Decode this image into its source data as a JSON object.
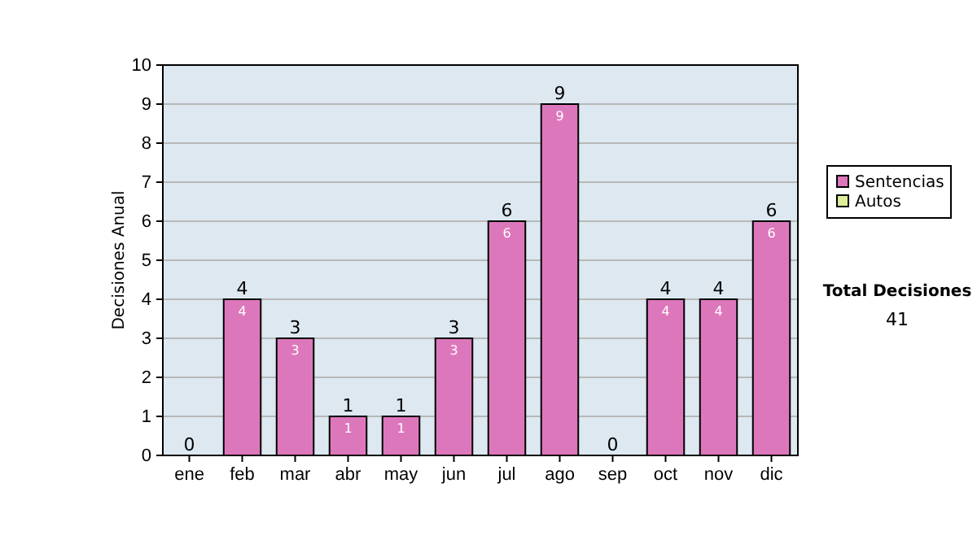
{
  "chart_data": {
    "type": "bar",
    "ylabel": "Decisiones Anual",
    "categories": [
      "ene",
      "feb",
      "mar",
      "abr",
      "may",
      "jun",
      "jul",
      "ago",
      "sep",
      "oct",
      "nov",
      "dic"
    ],
    "series": [
      {
        "name": "Sentencias",
        "color": "#dd77bb",
        "values": [
          0,
          4,
          3,
          1,
          1,
          3,
          6,
          9,
          0,
          4,
          4,
          6
        ],
        "value_labels": [
          null,
          "4",
          "3",
          "1",
          "1",
          "3",
          "6",
          "9",
          null,
          "4",
          "4",
          "6"
        ]
      },
      {
        "name": "Autos",
        "color": "#ddee99",
        "values": [
          0,
          0,
          0,
          0,
          0,
          0,
          0,
          0,
          0,
          0,
          0,
          0
        ]
      }
    ],
    "stacked": true,
    "totals": [
      "0",
      "4",
      "3",
      "1",
      "1",
      "3",
      "6",
      "9",
      "0",
      "4",
      "4",
      "6"
    ],
    "ylim": [
      0,
      10
    ],
    "yticks": [
      0,
      1,
      2,
      3,
      4,
      5,
      6,
      7,
      8,
      9,
      10
    ],
    "grid": "y",
    "legend": "right",
    "annotations": [
      "Total Decisiones",
      "41"
    ]
  }
}
